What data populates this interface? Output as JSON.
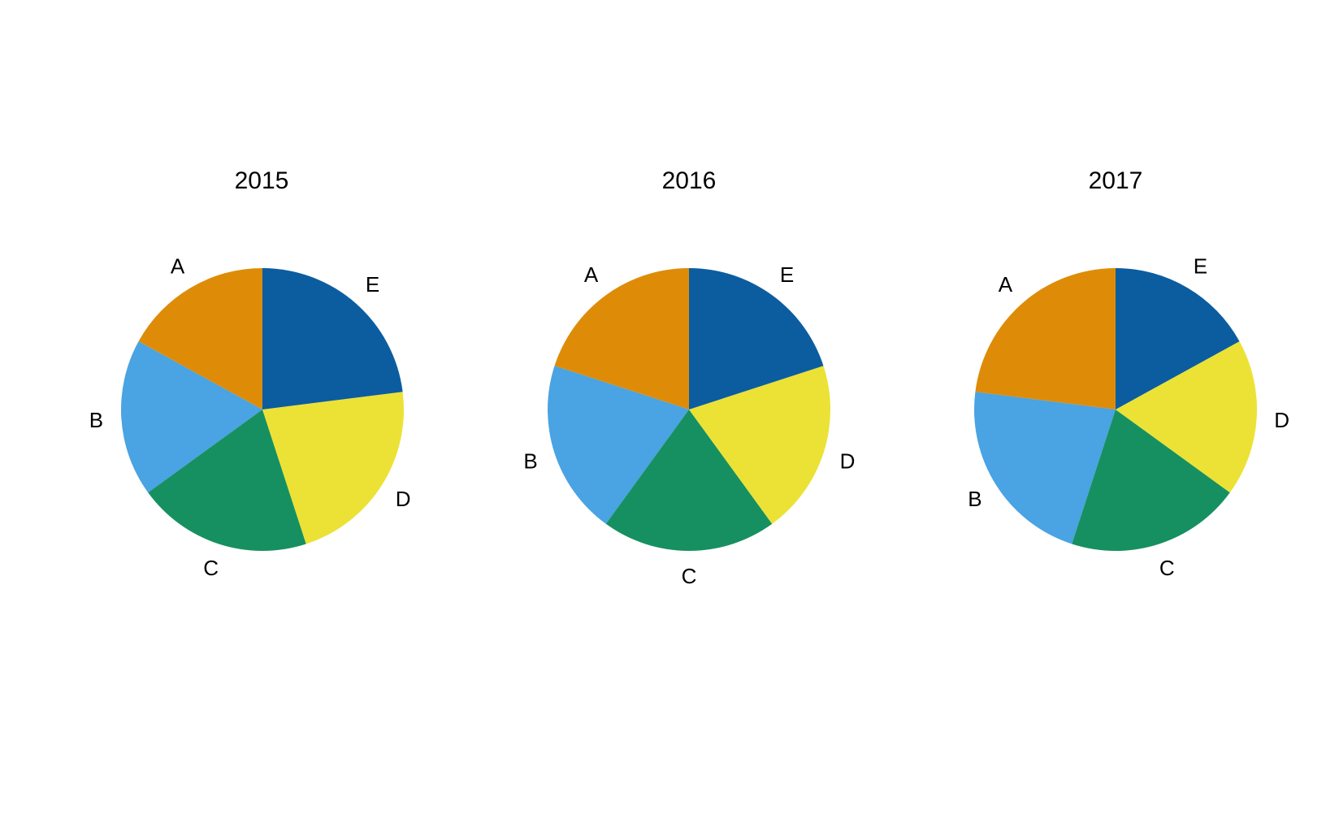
{
  "chart_data": [
    {
      "type": "pie",
      "title": "2015",
      "categories": [
        "A",
        "B",
        "C",
        "D",
        "E"
      ],
      "values": [
        17,
        18,
        20,
        22,
        23
      ],
      "colors": [
        "#DE8C08",
        "#4AA3E2",
        "#169061",
        "#EBE235",
        "#0B5DA0"
      ]
    },
    {
      "type": "pie",
      "title": "2016",
      "categories": [
        "A",
        "B",
        "C",
        "D",
        "E"
      ],
      "values": [
        20,
        20,
        20,
        20,
        20
      ],
      "colors": [
        "#DE8C08",
        "#4AA3E2",
        "#169061",
        "#EBE235",
        "#0B5DA0"
      ]
    },
    {
      "type": "pie",
      "title": "2017",
      "categories": [
        "A",
        "B",
        "C",
        "D",
        "E"
      ],
      "values": [
        23,
        22,
        20,
        18,
        17
      ],
      "colors": [
        "#DE8C08",
        "#4AA3E2",
        "#169061",
        "#EBE235",
        "#0B5DA0"
      ]
    }
  ]
}
